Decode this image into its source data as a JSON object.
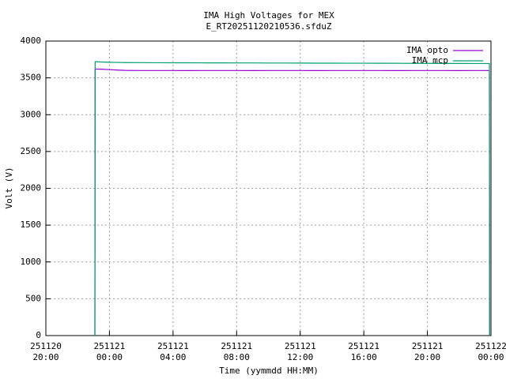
{
  "chart_data": {
    "type": "line",
    "title": "IMA High Voltages for MEX",
    "subtitle": "E_RT20251120210536.sfduZ",
    "xlabel": "Time (yymmdd HH:MM)",
    "ylabel": "Volt (V)",
    "x": [
      "251120 23:05",
      "251120 23:06",
      "251120 23:30",
      "251121 00:00",
      "251121 00:30",
      "251121 01:00",
      "251121 02:00",
      "251121 03:00",
      "251121 04:00",
      "251121 05:00",
      "251121 06:00",
      "251121 07:00",
      "251121 08:00",
      "251121 09:00",
      "251121 10:00",
      "251121 11:00",
      "251121 12:00",
      "251121 13:00",
      "251121 14:00",
      "251121 15:00",
      "251121 16:00",
      "251121 17:00",
      "251121 18:00",
      "251121 19:00",
      "251121 20:00",
      "251121 21:00",
      "251121 22:00",
      "251121 23:00",
      "251121 23:50",
      "251121 23:54",
      "251121 23:55"
    ],
    "series": [
      {
        "name": "IMA opto",
        "color": "#9400d3",
        "values": [
          0,
          3620,
          3618,
          3612,
          3606,
          3602,
          3600,
          3600,
          3600,
          3599,
          3600,
          3600,
          3600,
          3599,
          3600,
          3600,
          3600,
          3599,
          3600,
          3600,
          3600,
          3600,
          3599,
          3600,
          3600,
          3600,
          3599,
          3600,
          3600,
          3600,
          0
        ]
      },
      {
        "name": "IMA mcp",
        "color": "#009e73",
        "values": [
          0,
          3720,
          3716,
          3712,
          3710,
          3708,
          3707,
          3706,
          3705,
          3705,
          3704,
          3704,
          3703,
          3703,
          3702,
          3702,
          3701,
          3700,
          3700,
          3699,
          3699,
          3698,
          3698,
          3697,
          3697,
          3696,
          3696,
          3695,
          3695,
          3695,
          0
        ]
      }
    ],
    "xlim": [
      "251120 20:00",
      "251122 00:00"
    ],
    "xticks": [
      {
        "value": "251120 20:00",
        "label": [
          "251120",
          "20:00"
        ]
      },
      {
        "value": "251121 00:00",
        "label": [
          "251121",
          "00:00"
        ]
      },
      {
        "value": "251121 04:00",
        "label": [
          "251121",
          "04:00"
        ]
      },
      {
        "value": "251121 08:00",
        "label": [
          "251121",
          "08:00"
        ]
      },
      {
        "value": "251121 12:00",
        "label": [
          "251121",
          "12:00"
        ]
      },
      {
        "value": "251121 16:00",
        "label": [
          "251121",
          "16:00"
        ]
      },
      {
        "value": "251121 20:00",
        "label": [
          "251121",
          "20:00"
        ]
      },
      {
        "value": "251122 00:00",
        "label": [
          "251122",
          "00:00"
        ]
      }
    ],
    "ylim": [
      0,
      4000
    ],
    "yticks": [
      0,
      500,
      1000,
      1500,
      2000,
      2500,
      3000,
      3500,
      4000
    ],
    "grid": true,
    "legend": "top-right"
  }
}
